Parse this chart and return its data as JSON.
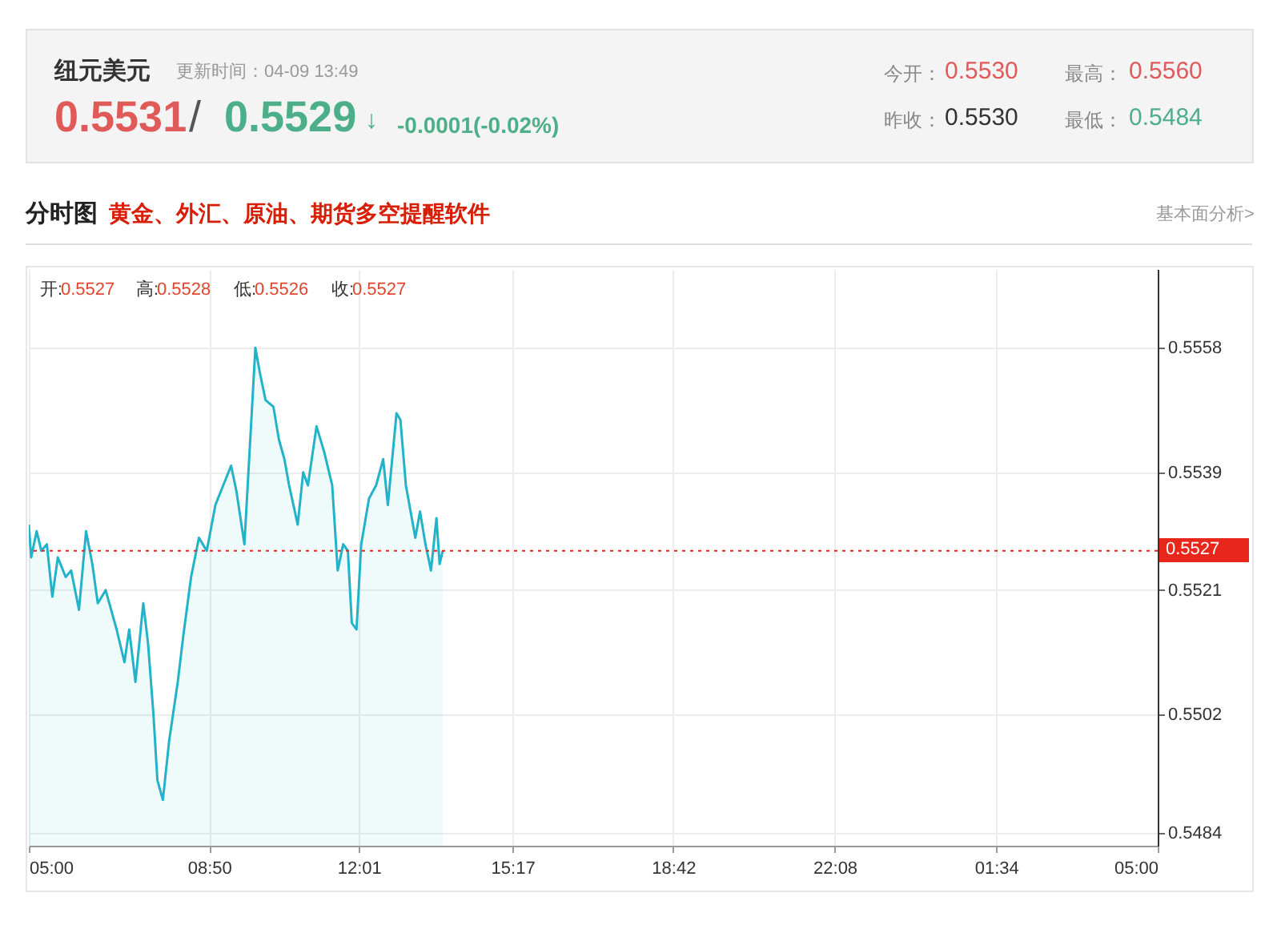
{
  "chart_data": {
    "type": "area",
    "title": "纽元美元",
    "subtitle": "更新时间：04-09 13:49",
    "annotations": [
      "0.5531",
      "/",
      "0.5529",
      "↓",
      "-0.0001(-0.02%)",
      "今开：",
      "0.5530",
      "最高：",
      "0.5560",
      "昨收：",
      "0.5530",
      "最低：",
      "0.5484",
      "分时图",
      "黄金、外汇、原油、期货多空提醒软件",
      "基本面分析>",
      "开:",
      "0.5527",
      "高:",
      "0.5528",
      "低:",
      "0.5526",
      "收:",
      "0.5527"
    ],
    "x": [
      "--04-09T05:00",
      "--04-09T05:03",
      "--04-09T05:10",
      "--04-09T05:16",
      "--04-09T05:23",
      "--04-09T05:30",
      "--04-09T05:37",
      "--04-09T05:47",
      "--04-09T05:54",
      "--04-09T06:04",
      "--04-09T06:13",
      "--04-09T06:21",
      "--04-09T06:28",
      "--04-09T06:38",
      "--04-09T06:52",
      "--04-09T07:02",
      "--04-09T07:08",
      "--04-09T07:16",
      "--04-09T07:26",
      "--04-09T07:32",
      "--04-09T07:39",
      "--04-09T07:44",
      "--04-09T07:51",
      "--04-09T07:59",
      "--04-09T08:10",
      "--04-09T08:17",
      "--04-09T08:27",
      "--04-09T08:37",
      "--04-09T08:47",
      "--04-09T08:58",
      "--04-09T09:08",
      "--04-09T09:18",
      "--04-09T09:25",
      "--04-09T09:35",
      "--04-09T09:49",
      "--04-09T09:55",
      "--04-09T10:02",
      "--04-09T10:12",
      "--04-09T10:19",
      "--04-09T10:26",
      "--04-09T10:32",
      "--04-09T10:43",
      "--04-09T10:50",
      "--04-09T10:56",
      "--04-09T11:07",
      "--04-09T11:17",
      "--04-09T11:27",
      "--04-09T11:34",
      "--04-09T11:41",
      "--04-09T11:47",
      "--04-09T11:52",
      "--04-09T11:58",
      "--04-09T12:04",
      "--04-09T12:14",
      "--04-09T12:23",
      "--04-09T12:32",
      "--04-09T12:38",
      "--04-09T12:49",
      "--04-09T12:54",
      "--04-09T13:01",
      "--04-09T13:13",
      "--04-09T13:19",
      "--04-09T13:26",
      "--04-09T13:33",
      "--04-09T13:40",
      "--04-09T13:44",
      "--04-09T13:48"
    ],
    "series": [
      {
        "color": "#22b3c9",
        "values": [
          0.5531,
          0.5526,
          0.553,
          0.5527,
          0.5528,
          0.552,
          0.5526,
          0.5523,
          0.5524,
          0.5518,
          0.553,
          0.5525,
          0.5519,
          0.5521,
          0.5515,
          0.551,
          0.5515,
          0.5507,
          0.5519,
          0.5513,
          0.5502,
          0.5492,
          0.5489,
          0.5498,
          0.5507,
          0.5514,
          0.5523,
          0.5529,
          0.5527,
          0.5534,
          0.5537,
          0.554,
          0.5536,
          0.5528,
          0.5558,
          0.5554,
          0.555,
          0.5549,
          0.5544,
          0.5541,
          0.5537,
          0.5531,
          0.5539,
          0.5537,
          0.5546,
          0.5542,
          0.5537,
          0.5524,
          0.5528,
          0.5527,
          0.5516,
          0.5515,
          0.5528,
          0.5535,
          0.5537,
          0.5541,
          0.5534,
          0.5548,
          0.5547,
          0.5537,
          0.5529,
          0.5533,
          0.5528,
          0.5524,
          0.5532,
          0.5525,
          0.5527
        ]
      }
    ],
    "xlim": [
      "--04-09T05:00",
      "--04-10T05:00"
    ],
    "xticks": [
      {
        "value": "--04-09T05:00",
        "label": "05:00"
      },
      {
        "value": "--04-09T08:50",
        "label": "08:50"
      },
      {
        "value": "--04-09T12:01",
        "label": "12:01"
      },
      {
        "value": "--04-09T15:17",
        "label": "15:17"
      },
      {
        "value": "--04-09T18:42",
        "label": "18:42"
      },
      {
        "value": "--04-09T22:08",
        "label": "22:08"
      },
      {
        "value": "--04-10T01:34",
        "label": "01:34"
      },
      {
        "value": "--04-10T05:00",
        "label": "05:00"
      }
    ],
    "ylim": [
      0.5482,
      0.557
    ],
    "yticks": [
      0.5484,
      0.5502,
      0.5521,
      0.5539,
      0.5558
    ],
    "ref_lines": [
      {
        "axis": "y",
        "value": 0.5527,
        "label": "0.5527",
        "color": "#e8261b",
        "line_style": "dotted"
      }
    ],
    "grid": true
  }
}
